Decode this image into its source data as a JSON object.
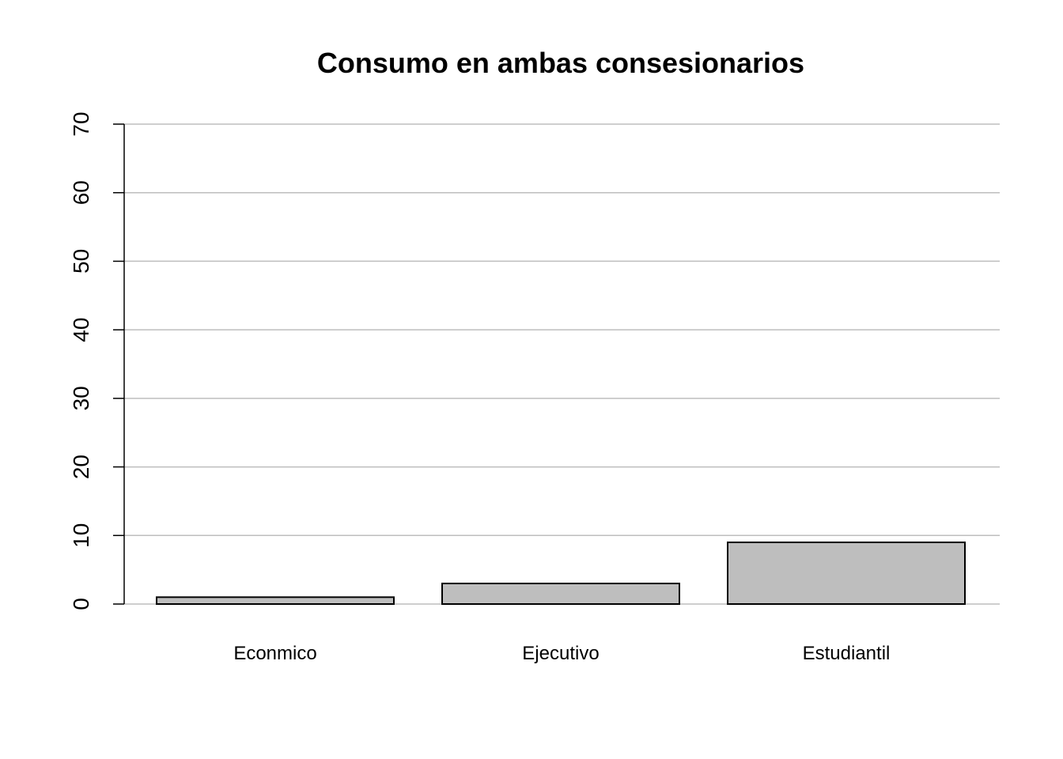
{
  "chart_data": {
    "type": "bar",
    "title": "Consumo en ambas consesionarios",
    "xlabel": "",
    "ylabel": "",
    "categories": [
      "Econmico",
      "Ejecutivo",
      "Estudiantil"
    ],
    "values": [
      1,
      3,
      9
    ],
    "ylim": [
      0,
      70
    ],
    "yticks": [
      0,
      10,
      20,
      30,
      40,
      50,
      60,
      70
    ],
    "grid": true,
    "legend": "none",
    "bar_fill": "#bebebe",
    "bar_stroke": "#000000",
    "grid_color": "#bebebe"
  }
}
